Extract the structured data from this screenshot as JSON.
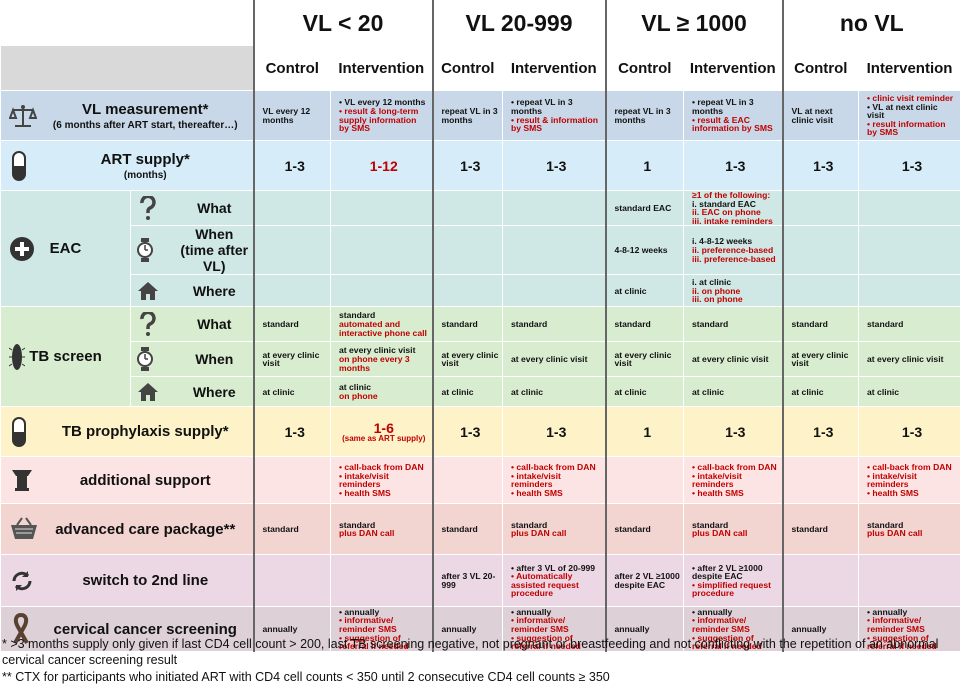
{
  "header": {
    "groups": [
      "VL < 20",
      "VL 20-999",
      "VL ≥ 1000",
      "no VL"
    ],
    "subheaders": [
      "Control",
      "Intervention",
      "Control",
      "Intervention",
      "Control",
      "Intervention",
      "Control",
      "Intervention"
    ]
  },
  "rows": [
    {
      "label": "VL measurement*",
      "sublabel": "(6 months after ART start, thereafter…)",
      "color": "#c9d8e8",
      "cells": [
        [
          "VL every 12 months"
        ],
        [
          "• VL every 12 months",
          {
            "text": "• result & long-term supply information by SMS",
            "color": "#c00000"
          }
        ],
        [
          "repeat VL in 3 months"
        ],
        [
          "• repeat VL in 3 months",
          {
            "text": "• result & information by SMS",
            "color": "#c00000"
          }
        ],
        [
          "repeat VL in 3 months"
        ],
        [
          "• repeat VL in 3 months",
          {
            "text": "• result & EAC information by SMS",
            "color": "#c00000"
          }
        ],
        [
          "VL at next clinic visit"
        ],
        [
          {
            "text": "• clinic visit reminder",
            "color": "#c00000"
          },
          "• VL at next clinic visit",
          {
            "text": "• result  information by SMS",
            "color": "#c00000"
          }
        ]
      ]
    },
    {
      "label": "ART  supply*",
      "sublabel": "(months)",
      "color": "#d6ecf8",
      "large": true,
      "cells": [
        [
          "1-3"
        ],
        [
          {
            "text": "1-12",
            "color": "#c00000"
          }
        ],
        [
          "1-3"
        ],
        [
          "1-3"
        ],
        [
          "1"
        ],
        [
          "1-3"
        ],
        [
          "1-3"
        ],
        [
          "1-3"
        ]
      ]
    },
    {
      "label": "EAC",
      "color": "#cfe8e5",
      "subrows": [
        {
          "label": "What",
          "cells": [
            [],
            [],
            [],
            [],
            [
              "standard EAC"
            ],
            [
              {
                "text": "≥1 of the following:",
                "color": "#c00000"
              },
              "i.   standard EAC",
              {
                "text": "ii.  EAC on phone",
                "color": "#c00000"
              },
              {
                "text": "iii. intake reminders",
                "color": "#c00000"
              }
            ],
            [],
            []
          ]
        },
        {
          "label": "When",
          "sublabel": "(time after VL)",
          "cells": [
            [],
            [],
            [],
            [],
            [
              "4-8-12 weeks"
            ],
            [
              "i.   4-8-12 weeks",
              {
                "text": "ii.  preference-based",
                "color": "#c00000"
              },
              {
                "text": "iii. preference-based",
                "color": "#c00000"
              }
            ],
            [],
            []
          ]
        },
        {
          "label": "Where",
          "cells": [
            [],
            [],
            [],
            [],
            [
              "at clinic"
            ],
            [
              "i.   at clinic",
              {
                "text": "ii.  on phone",
                "color": "#c00000"
              },
              {
                "text": "iii. on phone",
                "color": "#c00000"
              }
            ],
            [],
            []
          ]
        }
      ]
    },
    {
      "label": "TB screen",
      "color": "#d8edd0",
      "subrows": [
        {
          "label": "What",
          "cells": [
            [
              "standard"
            ],
            [
              "standard",
              {
                "text": "automated and interactive phone call",
                "color": "#c00000"
              }
            ],
            [
              "standard"
            ],
            [
              "standard"
            ],
            [
              "standard"
            ],
            [
              "standard"
            ],
            [
              "standard"
            ],
            [
              "standard"
            ]
          ]
        },
        {
          "label": "When",
          "cells": [
            [
              "at every clinic visit"
            ],
            [
              "at every clinic visit",
              {
                "text": "on phone every 3 months",
                "color": "#c00000"
              }
            ],
            [
              "at every clinic visit"
            ],
            [
              "at every clinic visit"
            ],
            [
              "at every clinic visit"
            ],
            [
              "at every clinic visit"
            ],
            [
              "at every clinic visit"
            ],
            [
              "at every clinic visit"
            ]
          ]
        },
        {
          "label": "Where",
          "cells": [
            [
              "at clinic"
            ],
            [
              "at clinic",
              {
                "text": "on phone",
                "color": "#c00000"
              }
            ],
            [
              "at clinic"
            ],
            [
              "at clinic"
            ],
            [
              "at clinic"
            ],
            [
              "at clinic"
            ],
            [
              "at clinic"
            ],
            [
              "at clinic"
            ]
          ]
        }
      ]
    },
    {
      "label": "TB prophylaxis supply*",
      "color": "#fdf2c8",
      "large": true,
      "cells": [
        [
          "1-3"
        ],
        [
          {
            "text": "1-6",
            "color": "#c00000"
          },
          {
            "text": "(same as ART supply)",
            "color": "#c00000",
            "small": true
          }
        ],
        [
          "1-3"
        ],
        [
          "1-3"
        ],
        [
          "1"
        ],
        [
          "1-3"
        ],
        [
          "1-3"
        ],
        [
          "1-3"
        ]
      ]
    },
    {
      "label": "additional  support",
      "color": "#fde4e4",
      "cells": [
        [],
        [
          {
            "text": "• call-back from DAN",
            "color": "#c00000"
          },
          {
            "text": "• intake/visit reminders",
            "color": "#c00000"
          },
          {
            "text": "• health SMS",
            "color": "#c00000"
          }
        ],
        [],
        [
          {
            "text": "• call-back from DAN",
            "color": "#c00000"
          },
          {
            "text": "• intake/visit reminders",
            "color": "#c00000"
          },
          {
            "text": "• health SMS",
            "color": "#c00000"
          }
        ],
        [],
        [
          {
            "text": "• call-back from DAN",
            "color": "#c00000"
          },
          {
            "text": "• intake/visit reminders",
            "color": "#c00000"
          },
          {
            "text": "• health SMS",
            "color": "#c00000"
          }
        ],
        [],
        [
          {
            "text": "• call-back from DAN",
            "color": "#c00000"
          },
          {
            "text": "• intake/visit reminders",
            "color": "#c00000"
          },
          {
            "text": "• health SMS",
            "color": "#c00000"
          }
        ]
      ]
    },
    {
      "label": "advanced care package**",
      "color": "#f2d4d1",
      "cells": [
        [
          "standard"
        ],
        [
          "standard",
          {
            "text": "plus DAN call",
            "color": "#c00000"
          }
        ],
        [
          "standard"
        ],
        [
          "standard",
          {
            "text": "plus DAN call",
            "color": "#c00000"
          }
        ],
        [
          "standard"
        ],
        [
          "standard",
          {
            "text": "plus DAN call",
            "color": "#c00000"
          }
        ],
        [
          "standard"
        ],
        [
          "standard",
          {
            "text": "plus DAN call",
            "color": "#c00000"
          }
        ]
      ]
    },
    {
      "label": "switch to 2nd line",
      "color": "#ecd7e4",
      "cells": [
        [],
        [],
        [
          "after 3 VL 20-999"
        ],
        [
          "• after 3 VL of 20-999",
          {
            "text": "• Automatically assisted request procedure",
            "color": "#c00000"
          }
        ],
        [
          "after 2 VL ≥1000 despite EAC"
        ],
        [
          "• after 2 VL ≥1000 despite EAC",
          {
            "text": "• simplified request procedure",
            "color": "#c00000"
          }
        ],
        [],
        []
      ]
    },
    {
      "label": "cervical cancer screening",
      "color": "#ddd1d7",
      "cells": [
        [
          "annually"
        ],
        [
          "• annually",
          {
            "text": "• informative/ reminder SMS",
            "color": "#c00000"
          },
          {
            "text": "• suggestion of referral if needed",
            "color": "#c00000"
          }
        ],
        [
          "annually"
        ],
        [
          "• annually",
          {
            "text": "• informative/ reminder SMS",
            "color": "#c00000"
          },
          {
            "text": "• suggestion of referral if needed",
            "color": "#c00000"
          }
        ],
        [
          "annually"
        ],
        [
          "• annually",
          {
            "text": "• informative/ reminder SMS",
            "color": "#c00000"
          },
          {
            "text": "• suggestion of referral if needed",
            "color": "#c00000"
          }
        ],
        [
          "annually"
        ],
        [
          "• annually",
          {
            "text": "• informative/ reminder SMS",
            "color": "#c00000"
          },
          {
            "text": "• suggestion of referral if needed",
            "color": "#c00000"
          }
        ]
      ]
    }
  ],
  "footnotes": [
    "* >3 months supply only given if last CD4 cell count > 200, last TB screening negative, not pregnant or breastfeeding and not conflicting with the repetition of an abnormal cervical cancer screening result",
    "** CTX for participants who initiated ART with CD4 cell counts < 350 until 2 consecutive CD4 cell counts ≥ 350"
  ]
}
